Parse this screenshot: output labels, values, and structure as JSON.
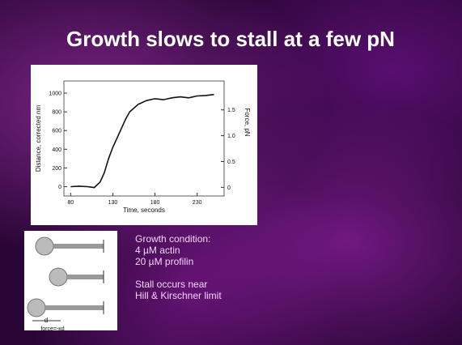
{
  "title": "Growth slows to stall at a few pN",
  "chart_data": {
    "type": "line",
    "xlabel": "Time, seconds",
    "ylabel": "Distance, corrected nm",
    "y2label": "Force, pN",
    "x": [
      80,
      90,
      100,
      108,
      115,
      120,
      125,
      130,
      135,
      140,
      145,
      150,
      160,
      170,
      180,
      190,
      200,
      210,
      220,
      230,
      240,
      250
    ],
    "values": [
      0,
      5,
      0,
      -10,
      50,
      150,
      300,
      420,
      520,
      620,
      720,
      800,
      880,
      920,
      940,
      930,
      950,
      960,
      950,
      970,
      975,
      985
    ],
    "color": "#111111",
    "xlim": [
      72,
      262
    ],
    "xticks": [
      80,
      130,
      180,
      230
    ],
    "ylim": [
      -100,
      1130
    ],
    "yticks": [
      0,
      200,
      400,
      600,
      800,
      1000
    ],
    "y2lim": [
      -0.167,
      2.06
    ],
    "y2ticks": [
      0,
      0.5,
      {
        "value": 1,
        "label": "1.0"
      },
      1.5
    ]
  },
  "diagram": {
    "distance_label": "d",
    "force_label": "force=-κd"
  },
  "notes": [
    "Growth condition:",
    "4 µM actin",
    "20 µM profilin",
    "Stall occurs near",
    "Hill & Kirschner limit"
  ]
}
